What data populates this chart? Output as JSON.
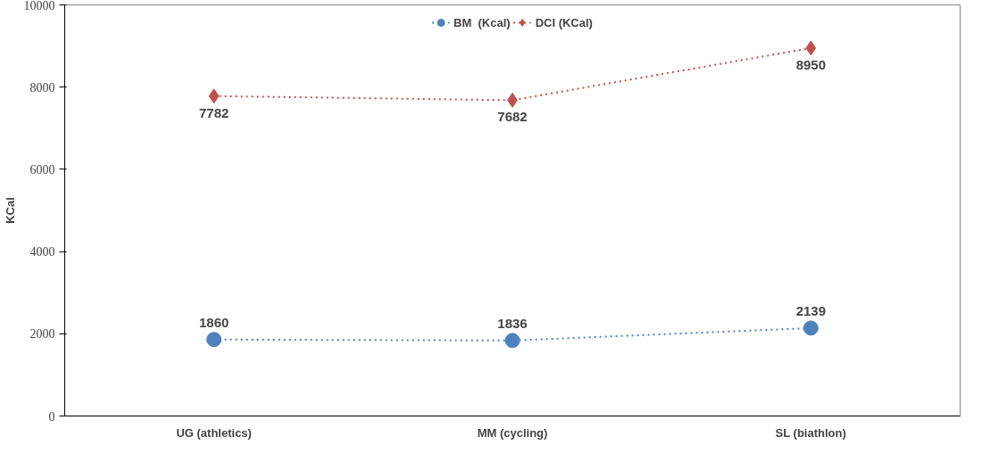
{
  "chart_data": {
    "type": "line",
    "ylabel": "KCal",
    "categories": [
      "UG (athletics)",
      "MM (cycling)",
      "SL (biathlon)"
    ],
    "series": [
      {
        "name": "BM  (Kcal)",
        "color": "#4f81bd",
        "values": [
          1860,
          1836,
          2139
        ],
        "marker": "circle"
      },
      {
        "name": "DCI (KCal)",
        "color": "#c0504d",
        "values": [
          7782,
          7682,
          8950
        ],
        "marker": "diamond"
      }
    ],
    "ylim": [
      0,
      10000
    ],
    "yticks": [
      0,
      2000,
      4000,
      6000,
      8000,
      10000
    ],
    "grid": false,
    "legend": "top",
    "line_style": "dotted",
    "data_labels": true
  }
}
